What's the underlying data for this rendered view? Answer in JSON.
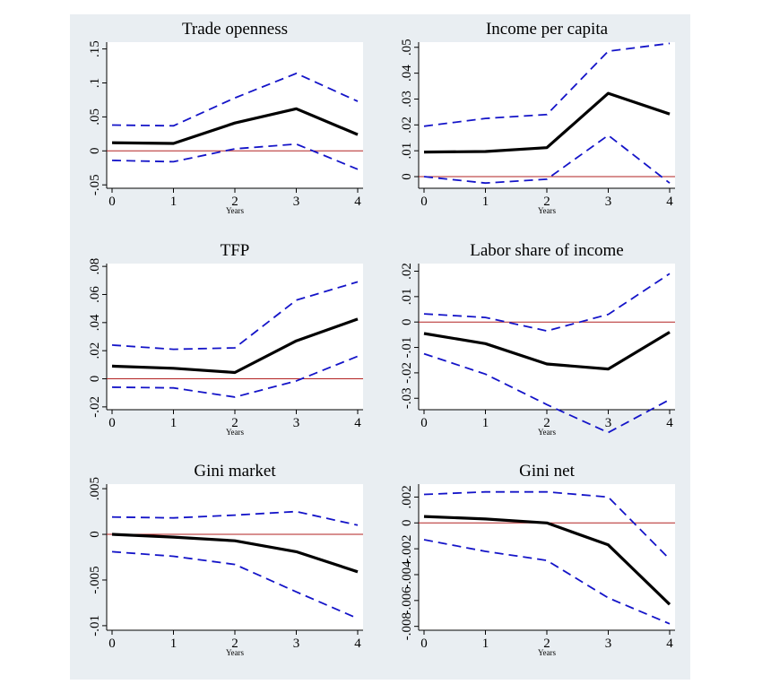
{
  "chart_data": [
    {
      "type": "line",
      "title": "Trade openness",
      "xlabel": "Years",
      "ylabel": "",
      "x": [
        0,
        1,
        2,
        3,
        4
      ],
      "xticks": [
        "0",
        "1",
        "2",
        "3",
        "4"
      ],
      "ylim": [
        -0.055,
        0.16
      ],
      "yticks": [
        {
          "v": -0.05,
          "label": "-.05"
        },
        {
          "v": 0,
          "label": "0"
        },
        {
          "v": 0.05,
          "label": ".05"
        },
        {
          "v": 0.1,
          "label": ".1"
        },
        {
          "v": 0.15,
          "label": ".15"
        }
      ],
      "series": [
        {
          "role": "upper",
          "values": [
            0.038,
            0.037,
            0.078,
            0.114,
            0.073
          ]
        },
        {
          "role": "estimate",
          "values": [
            0.012,
            0.011,
            0.041,
            0.062,
            0.024
          ]
        },
        {
          "role": "lower",
          "values": [
            -0.014,
            -0.016,
            0.003,
            0.01,
            -0.027
          ]
        }
      ],
      "zero_line": 0
    },
    {
      "type": "line",
      "title": "Income per capita",
      "xlabel": "Years",
      "ylabel": "",
      "x": [
        0,
        1,
        2,
        3,
        4
      ],
      "xticks": [
        "0",
        "1",
        "2",
        "3",
        "4"
      ],
      "ylim": [
        -0.0045,
        0.052
      ],
      "yticks": [
        {
          "v": 0,
          "label": "0"
        },
        {
          "v": 0.01,
          "label": ".01"
        },
        {
          "v": 0.02,
          "label": ".02"
        },
        {
          "v": 0.03,
          "label": ".03"
        },
        {
          "v": 0.04,
          "label": ".04"
        },
        {
          "v": 0.05,
          "label": ".05"
        }
      ],
      "series": [
        {
          "role": "upper",
          "values": [
            0.0195,
            0.0225,
            0.024,
            0.0485,
            0.0515
          ]
        },
        {
          "role": "estimate",
          "values": [
            0.0095,
            0.0097,
            0.0112,
            0.0322,
            0.0242
          ]
        },
        {
          "role": "lower",
          "values": [
            0.0,
            -0.0025,
            -0.001,
            0.016,
            -0.0025
          ]
        }
      ],
      "zero_line": 0
    },
    {
      "type": "line",
      "title": "TFP",
      "xlabel": "Years",
      "ylabel": "",
      "x": [
        0,
        1,
        2,
        3,
        4
      ],
      "xticks": [
        "0",
        "1",
        "2",
        "3",
        "4"
      ],
      "ylim": [
        -0.022,
        0.082
      ],
      "yticks": [
        {
          "v": -0.02,
          "label": "-.02"
        },
        {
          "v": 0,
          "label": "0"
        },
        {
          "v": 0.02,
          "label": ".02"
        },
        {
          "v": 0.04,
          "label": ".04"
        },
        {
          "v": 0.06,
          "label": ".06"
        },
        {
          "v": 0.08,
          "label": ".08"
        }
      ],
      "series": [
        {
          "role": "upper",
          "values": [
            0.024,
            0.021,
            0.022,
            0.056,
            0.069
          ]
        },
        {
          "role": "estimate",
          "values": [
            0.009,
            0.0075,
            0.0045,
            0.027,
            0.0425
          ]
        },
        {
          "role": "lower",
          "values": [
            -0.006,
            -0.0065,
            -0.013,
            -0.0015,
            0.016
          ]
        }
      ],
      "zero_line": 0
    },
    {
      "type": "line",
      "title": "Labor share of income",
      "xlabel": "Years",
      "ylabel": "",
      "x": [
        0,
        1,
        2,
        3,
        4
      ],
      "xticks": [
        "0",
        "1",
        "2",
        "3",
        "4"
      ],
      "ylim": [
        -0.0345,
        0.023
      ],
      "yticks": [
        {
          "v": -0.03,
          "label": "-.03"
        },
        {
          "v": -0.02,
          "label": "-.02"
        },
        {
          "v": -0.01,
          "label": "-.01"
        },
        {
          "v": 0,
          "label": "0"
        },
        {
          "v": 0.01,
          "label": ".01"
        },
        {
          "v": 0.02,
          "label": ".02"
        }
      ],
      "series": [
        {
          "role": "upper",
          "values": [
            0.0032,
            0.0018,
            -0.0035,
            0.003,
            0.019
          ]
        },
        {
          "role": "estimate",
          "values": [
            -0.0045,
            -0.0085,
            -0.0165,
            -0.0185,
            -0.004
          ]
        },
        {
          "role": "lower",
          "values": [
            -0.0125,
            -0.0205,
            -0.0325,
            -0.0435,
            -0.0305
          ]
        }
      ],
      "zero_line": 0
    },
    {
      "type": "line",
      "title": "Gini market",
      "xlabel": "Years",
      "ylabel": "",
      "x": [
        0,
        1,
        2,
        3,
        4
      ],
      "xticks": [
        "0",
        "1",
        "2",
        "3",
        "4"
      ],
      "ylim": [
        -0.0105,
        0.0055
      ],
      "yticks": [
        {
          "v": -0.01,
          "label": "-.01"
        },
        {
          "v": -0.005,
          "label": "-.005"
        },
        {
          "v": 0,
          "label": "0"
        },
        {
          "v": 0.005,
          "label": ".005"
        }
      ],
      "series": [
        {
          "role": "upper",
          "values": [
            0.0019,
            0.0018,
            0.0021,
            0.0025,
            0.001
          ]
        },
        {
          "role": "estimate",
          "values": [
            0.0,
            -0.0003,
            -0.0007,
            -0.0019,
            -0.0041
          ]
        },
        {
          "role": "lower",
          "values": [
            -0.0019,
            -0.0024,
            -0.0033,
            -0.0063,
            -0.0092
          ]
        }
      ],
      "zero_line": 0
    },
    {
      "type": "line",
      "title": "Gini net",
      "xlabel": "Years",
      "ylabel": "",
      "x": [
        0,
        1,
        2,
        3,
        4
      ],
      "xticks": [
        "0",
        "1",
        "2",
        "3",
        "4"
      ],
      "ylim": [
        -0.0083,
        0.003
      ],
      "yticks": [
        {
          "v": -0.008,
          "label": "-.008"
        },
        {
          "v": -0.006,
          "label": "-.006"
        },
        {
          "v": -0.004,
          "label": "-.004"
        },
        {
          "v": -0.002,
          "label": "-.002"
        },
        {
          "v": 0,
          "label": "0"
        },
        {
          "v": 0.002,
          "label": ".002"
        }
      ],
      "series": [
        {
          "role": "upper",
          "values": [
            0.0022,
            0.0024,
            0.0024,
            0.002,
            -0.0028
          ]
        },
        {
          "role": "estimate",
          "values": [
            0.0005,
            0.0003,
            0.0,
            -0.0017,
            -0.0063
          ]
        },
        {
          "role": "lower",
          "values": [
            -0.0013,
            -0.0022,
            -0.0029,
            -0.0058,
            -0.0078
          ]
        }
      ],
      "zero_line": 0
    }
  ],
  "colors": {
    "estimate": "#000000",
    "bands": "#1414c8",
    "zero_line": "#b22222",
    "panel_bg": "#e9eef2",
    "plot_bg": "#ffffff"
  }
}
